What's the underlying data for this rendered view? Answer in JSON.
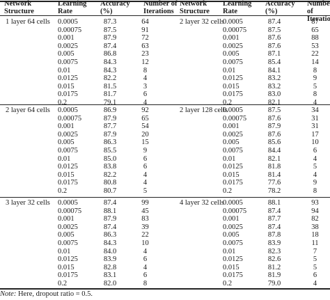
{
  "table": {
    "headers": [
      {
        "line1": "Network",
        "line2": "Structure"
      },
      {
        "line1": "Learning",
        "line2": "Rate"
      },
      {
        "line1": "Accuracy",
        "line2": "(%)"
      },
      {
        "line1": "Number of",
        "line2": "Iterations"
      },
      {
        "line1": "Network",
        "line2": "Structure"
      },
      {
        "line1": "Learning",
        "line2": "Rate"
      },
      {
        "line1": "Accuracy",
        "line2": "(%)"
      },
      {
        "line1": "Number of",
        "line2": "Iterations"
      }
    ],
    "groups": [
      {
        "left": {
          "structure": "1 layer 64 cells",
          "rows": [
            [
              "0.0005",
              "87.3",
              "64"
            ],
            [
              "0.00075",
              "87.5",
              "91"
            ],
            [
              "0.001",
              "87.9",
              "72"
            ],
            [
              "0.0025",
              "87.4",
              "63"
            ],
            [
              "0.005",
              "86.8",
              "23"
            ],
            [
              "0.0075",
              "84.3",
              "12"
            ],
            [
              "0.01",
              "84.3",
              "8"
            ],
            [
              "0.0125",
              "82.2",
              "4"
            ],
            [
              "0.015",
              "81.5",
              "3"
            ],
            [
              "0.0175",
              "81.7",
              "6"
            ],
            [
              "0.2",
              "79.1",
              "4"
            ]
          ]
        },
        "right": {
          "structure": "2 layer 32 cells",
          "rows": [
            [
              "0.0005",
              "87.4",
              "87"
            ],
            [
              "0.00075",
              "87.5",
              "65"
            ],
            [
              "0.001",
              "87.6",
              "88"
            ],
            [
              "0.0025",
              "87.6",
              "53"
            ],
            [
              "0.005",
              "87.1",
              "22"
            ],
            [
              "0.0075",
              "85.4",
              "14"
            ],
            [
              "0.01",
              "84.1",
              "8"
            ],
            [
              "0.0125",
              "83.2",
              "9"
            ],
            [
              "0.015",
              "83.2",
              "5"
            ],
            [
              "0.0175",
              "83.0",
              "8"
            ],
            [
              "0.2",
              "82.1",
              "4"
            ]
          ]
        }
      },
      {
        "left": {
          "structure": "2 layer 64 cells",
          "rows": [
            [
              "0.0005",
              "86.9",
              "92"
            ],
            [
              "0.00075",
              "87.9",
              "65"
            ],
            [
              "0.001",
              "87.7",
              "54"
            ],
            [
              "0.0025",
              "87.9",
              "20"
            ],
            [
              "0.005",
              "86.3",
              "15"
            ],
            [
              "0.0075",
              "85.5",
              "9"
            ],
            [
              "0.01",
              "85.0",
              "6"
            ],
            [
              "0.0125",
              "83.8",
              "6"
            ],
            [
              "0.015",
              "82.2",
              "4"
            ],
            [
              "0.0175",
              "80.8",
              "4"
            ],
            [
              "0.2",
              "80.7",
              "5"
            ]
          ]
        },
        "right": {
          "structure": "2 layer 128 cells",
          "rows": [
            [
              "0.0005",
              "87.5",
              "34"
            ],
            [
              "0.00075",
              "87.6",
              "31"
            ],
            [
              "0.001",
              "87.9",
              "31"
            ],
            [
              "0.0025",
              "87.6",
              "17"
            ],
            [
              "0.005",
              "85.6",
              "10"
            ],
            [
              "0.0075",
              "84.4",
              "6"
            ],
            [
              "0.01",
              "82.1",
              "4"
            ],
            [
              "0.0125",
              "81.8",
              "5"
            ],
            [
              "0.015",
              "81.4",
              "4"
            ],
            [
              "0.0175",
              "77.6",
              "9"
            ],
            [
              "0.2",
              "78.2",
              "8"
            ]
          ]
        }
      },
      {
        "left": {
          "structure": "3 layer 32 cells",
          "rows": [
            [
              "0.0005",
              "87.4",
              "99"
            ],
            [
              "0.00075",
              "88.1",
              "45"
            ],
            [
              "0.001",
              "87.9",
              "83"
            ],
            [
              "0.0025",
              "87.4",
              "39"
            ],
            [
              "0.005",
              "86.3",
              "22"
            ],
            [
              "0.0075",
              "84.3",
              "10"
            ],
            [
              "0.01",
              "84.0",
              "4"
            ],
            [
              "0.0125",
              "83.9",
              "6"
            ],
            [
              "0.015",
              "82.8",
              "4"
            ],
            [
              "0.0175",
              "83.1",
              "6"
            ],
            [
              "0.2",
              "82.0",
              "8"
            ]
          ]
        },
        "right": {
          "structure": "4 layer 32 cells",
          "rows": [
            [
              "0.0005",
              "88.1",
              "93"
            ],
            [
              "0.00075",
              "87.4",
              "94"
            ],
            [
              "0.001",
              "87.7",
              "82"
            ],
            [
              "0.0025",
              "87.4",
              "38"
            ],
            [
              "0.005",
              "87.8",
              "18"
            ],
            [
              "0.0075",
              "83.9",
              "11"
            ],
            [
              "0.01",
              "82.3",
              "7"
            ],
            [
              "0.0125",
              "82.6",
              "5"
            ],
            [
              "0.015",
              "81.2",
              "5"
            ],
            [
              "0.0175",
              "81.9",
              "6"
            ],
            [
              "0.2",
              "79.0",
              "4"
            ]
          ]
        }
      }
    ]
  },
  "note": {
    "label": "Note:",
    "text": " Here, dropout ratio = 0.5."
  }
}
